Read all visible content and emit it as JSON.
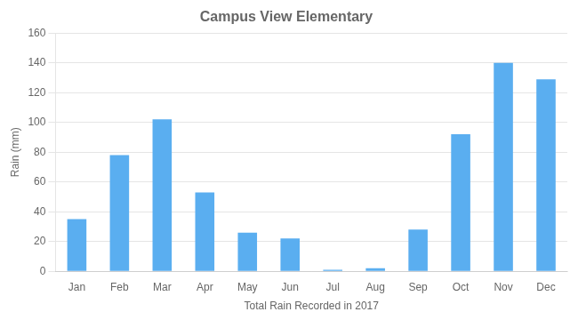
{
  "chart_data": {
    "type": "bar",
    "title": "Campus View Elementary",
    "xlabel": "Total Rain Recorded in 2017",
    "ylabel": "Rain (mm)",
    "categories": [
      "Jan",
      "Feb",
      "Mar",
      "Apr",
      "May",
      "Jun",
      "Jul",
      "Aug",
      "Sep",
      "Oct",
      "Nov",
      "Dec"
    ],
    "values": [
      35,
      78,
      102,
      53,
      26,
      22,
      1,
      2,
      28,
      92,
      140,
      129
    ],
    "color": "#5aaef0",
    "ylim": [
      0,
      160
    ],
    "yticks": [
      0,
      20,
      40,
      60,
      80,
      100,
      120,
      140,
      160
    ],
    "grid": true
  }
}
